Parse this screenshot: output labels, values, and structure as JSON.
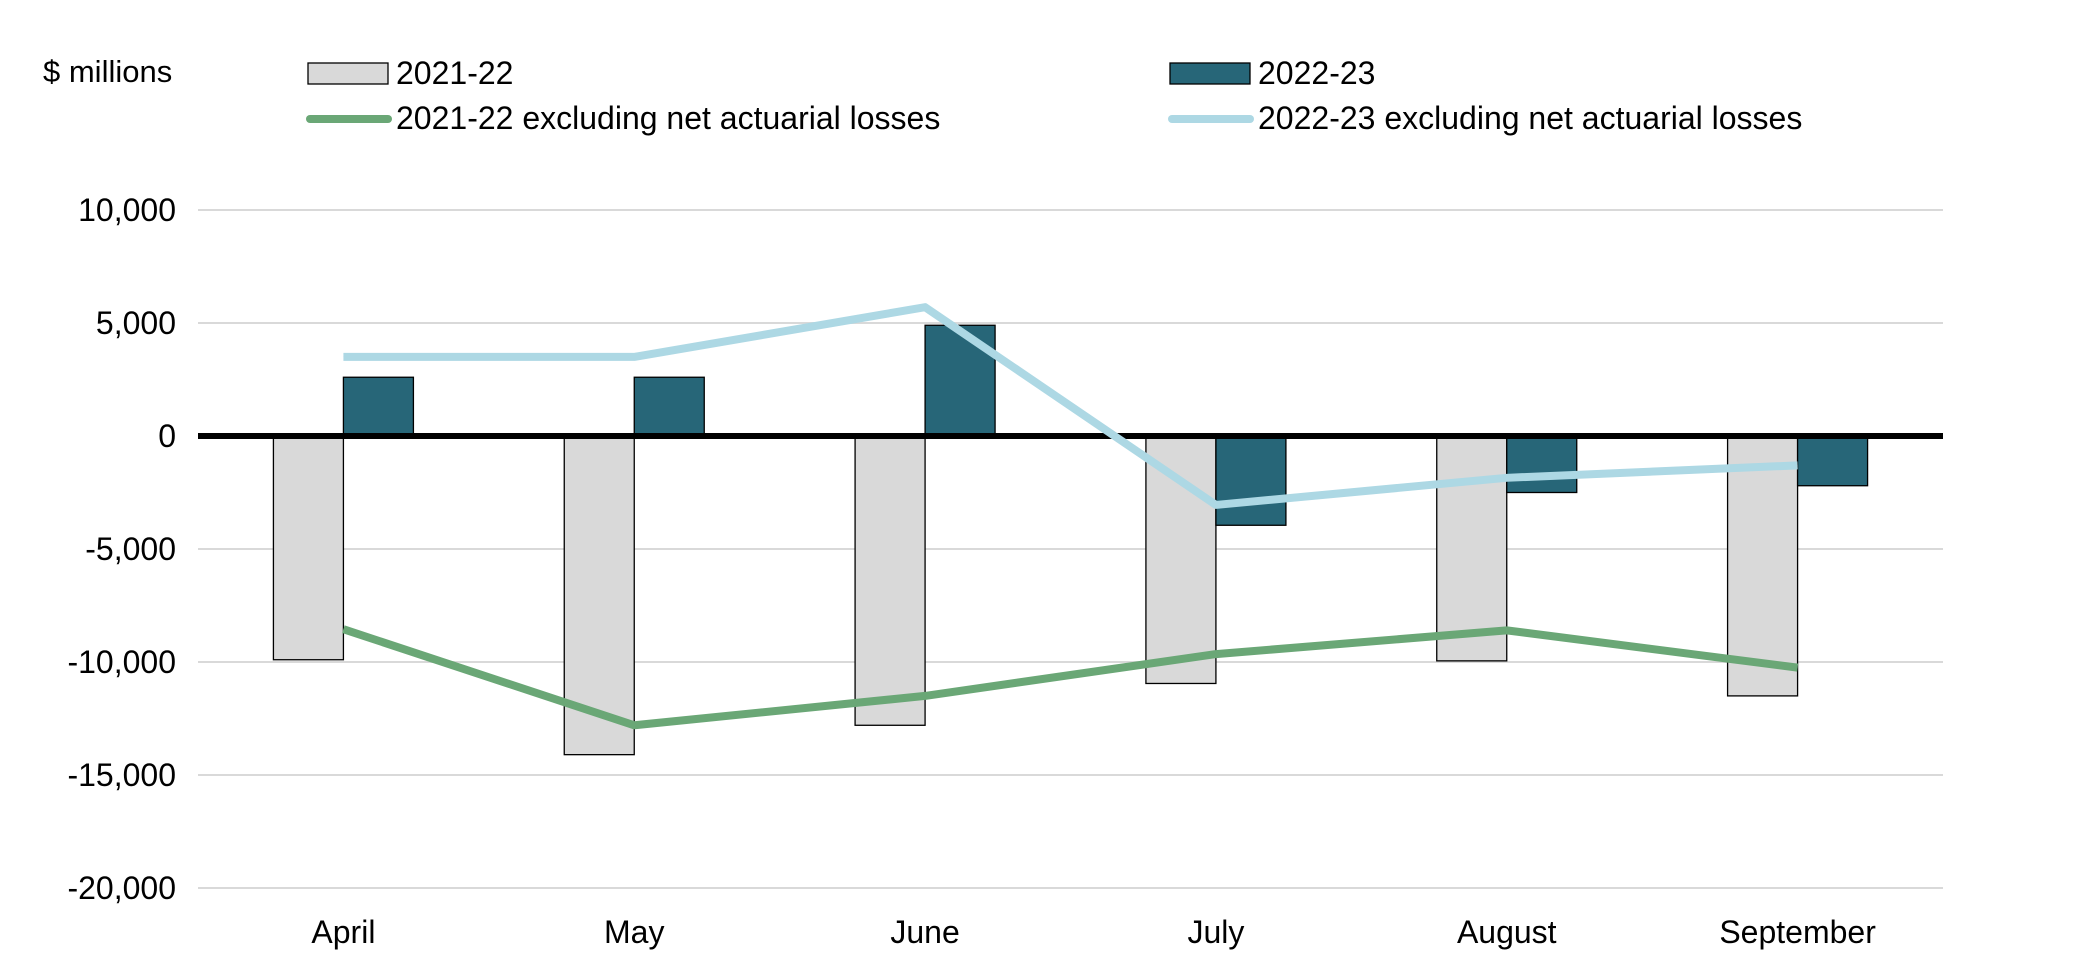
{
  "chart_data": {
    "type": "bar",
    "ylabel": "$ millions",
    "ylim": [
      -20000,
      10000
    ],
    "yticks": [
      10000,
      5000,
      0,
      -5000,
      -10000,
      -15000,
      -20000
    ],
    "ytick_labels": [
      "10,000",
      "5,000",
      "0",
      "-5,000",
      "-10,000",
      "-15,000",
      "-20,000"
    ],
    "grid": true,
    "legend_position": "top",
    "categories": [
      "April",
      "May",
      "June",
      "July",
      "August",
      "September"
    ],
    "series": [
      {
        "name": "2021-22",
        "kind": "bar",
        "color": "#d9d9d9",
        "values": [
          -9900,
          -14100,
          -12800,
          -10950,
          -9950,
          -11500
        ]
      },
      {
        "name": "2022-23",
        "kind": "bar",
        "color": "#276678",
        "values": [
          2600,
          2600,
          4900,
          -3950,
          -2500,
          -2200
        ]
      },
      {
        "name": "2021-22 excluding net actuarial losses",
        "kind": "line",
        "color": "#6aa776",
        "values": [
          -8550,
          -12800,
          -11500,
          -9650,
          -8600,
          -10250
        ]
      },
      {
        "name": "2022-23 excluding net actuarial losses",
        "kind": "line",
        "color": "#add8e4",
        "values": [
          3500,
          3500,
          5700,
          -3050,
          -1850,
          -1300
        ]
      }
    ]
  }
}
